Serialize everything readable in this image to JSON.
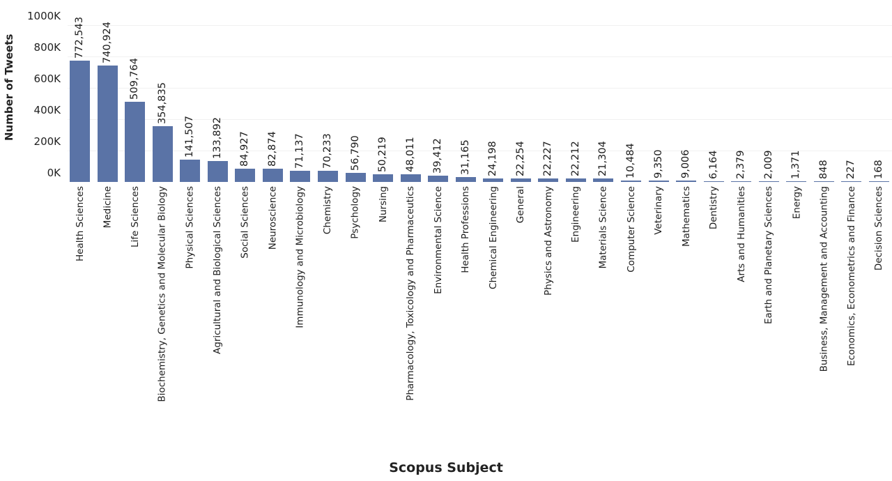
{
  "chart_data": {
    "type": "bar",
    "title": "",
    "xlabel": "Scopus Subject",
    "ylabel": "Number of Tweets",
    "ylim": [
      0,
      1000000
    ],
    "yticks": [
      "0K",
      "200K",
      "400K",
      "600K",
      "800K",
      "1000K"
    ],
    "ytick_values": [
      0,
      200000,
      400000,
      600000,
      800000,
      1000000
    ],
    "grid": true,
    "legend": null,
    "bar_color": "#5a73a6",
    "categories": [
      "Health Sciences",
      "Medicine",
      "Life Sciences",
      "Biochemistry,  Genetics and Molecular Biology",
      "Physical Sciences",
      "Agricultural and Biological Sciences",
      "Social Sciences",
      "Neuroscience",
      "Immunology and Microbiology",
      "Chemistry",
      "Psychology",
      "Nursing",
      "Pharmacology,  Toxicology and Pharmaceutics",
      "Environmental Science",
      "Health Professions",
      "Chemical Engineering",
      "General",
      "Physics and Astronomy",
      "Engineering",
      "Materials Science",
      "Computer Science",
      "Veterinary",
      "Mathematics",
      "Dentistry",
      "Arts and Humanities",
      "Earth and Planetary Sciences",
      "Energy",
      "Business,  Management and Accounting",
      "Economics,  Econometrics and Finance",
      "Decision Sciences"
    ],
    "values": [
      772543,
      740924,
      509764,
      354835,
      141507,
      133892,
      84927,
      82874,
      71137,
      70233,
      56790,
      50219,
      48011,
      39412,
      31165,
      24198,
      22254,
      22227,
      22212,
      21304,
      10484,
      9350,
      9006,
      6164,
      2379,
      2009,
      1371,
      848,
      227,
      168
    ],
    "value_labels": [
      "772,543",
      "740,924",
      "509,764",
      "354,835",
      "141,507",
      "133,892",
      "84,927",
      "82,874",
      "71,137",
      "70,233",
      "56,790",
      "50,219",
      "48,011",
      "39,412",
      "31,165",
      "24,198",
      "22,254",
      "22,227",
      "22,212",
      "21,304",
      "10,484",
      "9,350",
      "9,006",
      "6,164",
      "2,379",
      "2,009",
      "1,371",
      "848",
      "227",
      "168"
    ]
  }
}
